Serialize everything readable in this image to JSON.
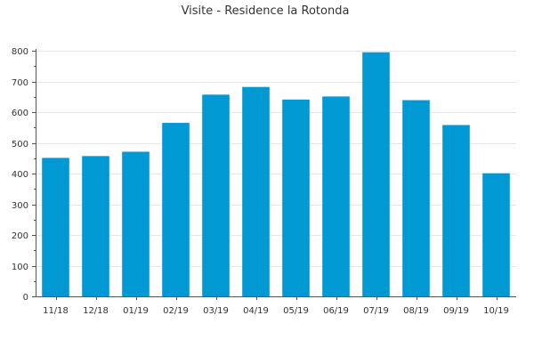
{
  "chart_data": {
    "type": "bar",
    "title": "Visite - Residence la Rotonda",
    "xlabel": "",
    "ylabel": "",
    "categories": [
      "11/18",
      "12/18",
      "01/19",
      "02/19",
      "03/19",
      "04/19",
      "05/19",
      "06/19",
      "07/19",
      "08/19",
      "09/19",
      "10/19"
    ],
    "values": [
      451,
      457,
      471,
      565,
      657,
      682,
      641,
      651,
      795,
      639,
      558,
      401
    ],
    "ylim": [
      0,
      800
    ],
    "yticks": [
      0,
      100,
      200,
      300,
      400,
      500,
      600,
      700,
      800
    ],
    "grid": true,
    "legend": "none",
    "bar_color": "#0099d3"
  }
}
